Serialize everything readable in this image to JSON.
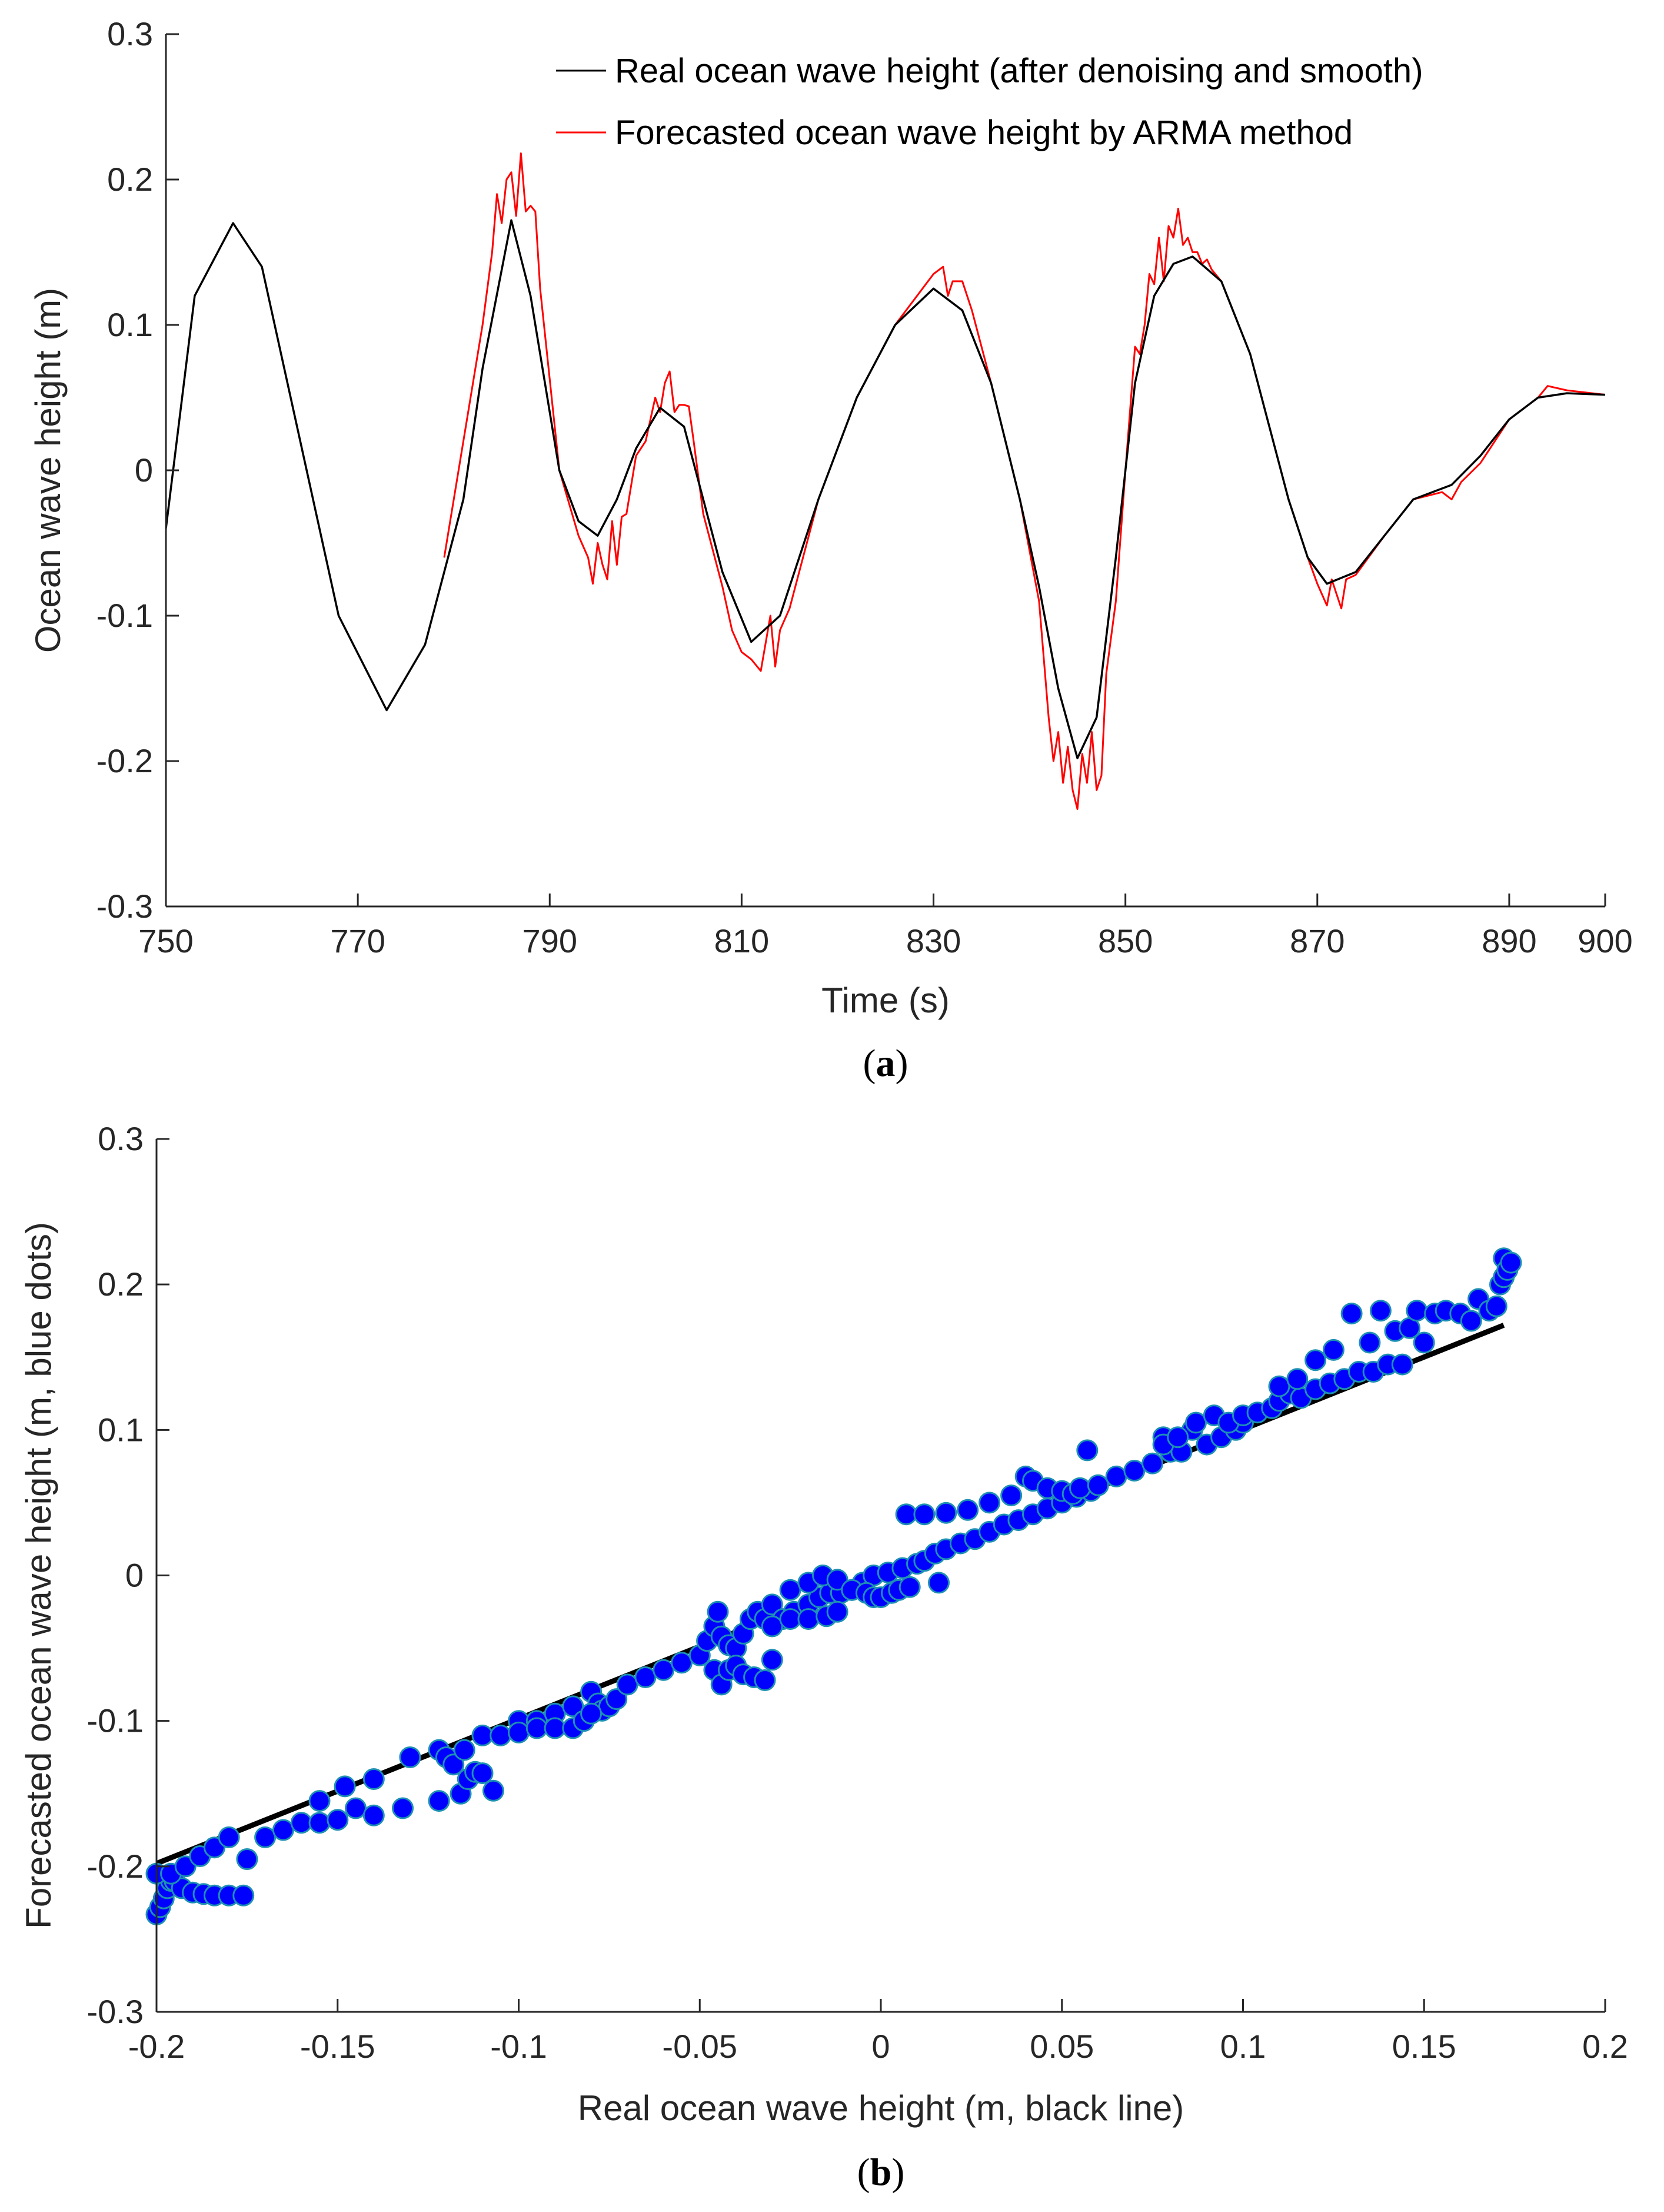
{
  "chart_data": [
    {
      "type": "line",
      "panel_label": "a",
      "xlabel": "Time (s)",
      "ylabel": "Ocean wave height (m)",
      "xlim": [
        750,
        900
      ],
      "ylim": [
        -0.3,
        0.3
      ],
      "xticks": [
        750,
        770,
        790,
        810,
        830,
        850,
        870,
        890,
        900
      ],
      "yticks": [
        -0.3,
        -0.2,
        -0.1,
        0,
        0.1,
        0.2,
        0.3
      ],
      "ytick_labels": [
        "-0.3",
        "-0.2",
        "-0.1",
        "0",
        "0.1",
        "0.2",
        "0.3"
      ],
      "legend_position": "top-right",
      "series": [
        {
          "name": "Real ocean wave height (after denoising and smooth)",
          "color": "#000000",
          "x": [
            750,
            753,
            757,
            760,
            764,
            768,
            773,
            777,
            781,
            783,
            786,
            788,
            791,
            793,
            795,
            797,
            799,
            801.5,
            804,
            806,
            808,
            811,
            814,
            818,
            822,
            826,
            830,
            833,
            836,
            839,
            841,
            843,
            845,
            847,
            849,
            851,
            853,
            855,
            857,
            860,
            863,
            865,
            867,
            869,
            871,
            874,
            877,
            880,
            884,
            887,
            890,
            893,
            896,
            900
          ],
          "y": [
            -0.04,
            0.12,
            0.17,
            0.14,
            0.02,
            -0.1,
            -0.165,
            -0.12,
            -0.02,
            0.07,
            0.172,
            0.12,
            0.0,
            -0.035,
            -0.045,
            -0.02,
            0.015,
            0.043,
            0.03,
            -0.02,
            -0.07,
            -0.118,
            -0.1,
            -0.02,
            0.05,
            0.1,
            0.125,
            0.11,
            0.06,
            -0.02,
            -0.08,
            -0.15,
            -0.198,
            -0.17,
            -0.06,
            0.06,
            0.12,
            0.142,
            0.147,
            0.13,
            0.08,
            0.03,
            -0.02,
            -0.06,
            -0.078,
            -0.07,
            -0.045,
            -0.02,
            -0.01,
            0.01,
            0.035,
            0.05,
            0.053,
            0.052
          ]
        },
        {
          "name": "Forecasted ocean wave height by ARMA method",
          "color": "#ff0000",
          "x": [
            779,
            781,
            783,
            784,
            784.5,
            785,
            785.5,
            786,
            786.5,
            787,
            787.5,
            788,
            788.5,
            789,
            791,
            793,
            794,
            794.5,
            795,
            795.5,
            796,
            796.5,
            797,
            797.5,
            798,
            799,
            800,
            801,
            801.5,
            802,
            802.5,
            803,
            803.5,
            804,
            804.5,
            805,
            806,
            808,
            809,
            810,
            811,
            812,
            813,
            813.5,
            814,
            815,
            816,
            818,
            822,
            826,
            830,
            831,
            831.5,
            832,
            833,
            834,
            836,
            839,
            841,
            842,
            842.5,
            843,
            843.5,
            844,
            844.5,
            845,
            845.5,
            846,
            846.5,
            847,
            847.5,
            848,
            849,
            850,
            851,
            851.5,
            852,
            852.5,
            853,
            853.5,
            854,
            854.5,
            855,
            855.5,
            856,
            856.5,
            857,
            857.5,
            858,
            858.5,
            859,
            860,
            863,
            865,
            867,
            869,
            870,
            871,
            871.5,
            872,
            872.5,
            873,
            874,
            877,
            880,
            883,
            884,
            885,
            887,
            890,
            893,
            894,
            896,
            900
          ],
          "y": [
            -0.06,
            0.02,
            0.1,
            0.15,
            0.19,
            0.17,
            0.2,
            0.205,
            0.175,
            0.218,
            0.178,
            0.182,
            0.178,
            0.125,
            0.0,
            -0.045,
            -0.06,
            -0.078,
            -0.05,
            -0.065,
            -0.075,
            -0.035,
            -0.065,
            -0.032,
            -0.03,
            0.01,
            0.02,
            0.05,
            0.04,
            0.06,
            0.068,
            0.04,
            0.045,
            0.045,
            0.044,
            0.02,
            -0.03,
            -0.08,
            -0.11,
            -0.125,
            -0.13,
            -0.138,
            -0.1,
            -0.135,
            -0.11,
            -0.095,
            -0.07,
            -0.02,
            0.05,
            0.1,
            0.135,
            0.14,
            0.12,
            0.13,
            0.13,
            0.11,
            0.06,
            -0.02,
            -0.09,
            -0.17,
            -0.2,
            -0.18,
            -0.215,
            -0.19,
            -0.22,
            -0.233,
            -0.195,
            -0.215,
            -0.18,
            -0.22,
            -0.21,
            -0.14,
            -0.09,
            0.0,
            0.085,
            0.08,
            0.1,
            0.135,
            0.128,
            0.16,
            0.13,
            0.168,
            0.16,
            0.18,
            0.155,
            0.16,
            0.15,
            0.15,
            0.142,
            0.145,
            0.138,
            0.13,
            0.08,
            0.03,
            -0.02,
            -0.06,
            -0.078,
            -0.093,
            -0.075,
            -0.085,
            -0.095,
            -0.075,
            -0.072,
            -0.045,
            -0.02,
            -0.015,
            -0.02,
            -0.008,
            0.005,
            0.035,
            0.05,
            0.058,
            0.055,
            0.052
          ]
        }
      ]
    },
    {
      "type": "scatter",
      "panel_label": "b",
      "xlabel": "Real ocean wave height (m, black line)",
      "ylabel": "Forecasted ocean wave height (m, blue dots)",
      "xlim": [
        -0.2,
        0.2
      ],
      "ylim": [
        -0.3,
        0.3
      ],
      "xticks": [
        -0.2,
        -0.15,
        -0.1,
        -0.05,
        0,
        0.05,
        0.1,
        0.15,
        0.2
      ],
      "xtick_labels": [
        "-0.2",
        "-0.15",
        "-0.1",
        "-0.05",
        "0",
        "0.05",
        "0.1",
        "0.15",
        "0.2"
      ],
      "yticks": [
        -0.3,
        -0.2,
        -0.1,
        0,
        0.1,
        0.2,
        0.3
      ],
      "ytick_labels": [
        "-0.3",
        "-0.2",
        "-0.1",
        "0",
        "0.1",
        "0.2",
        "0.3"
      ],
      "reference_line": {
        "x": [
          -0.2,
          0.172
        ],
        "y": [
          -0.198,
          0.172
        ],
        "color": "#000000"
      },
      "point_color": "#0000ff",
      "point_edge_color": "#1e90b4",
      "points": [
        [
          -0.2,
          -0.233
        ],
        [
          -0.199,
          -0.228
        ],
        [
          -0.198,
          -0.222
        ],
        [
          -0.197,
          -0.215
        ],
        [
          -0.196,
          -0.21
        ],
        [
          -0.195,
          -0.21
        ],
        [
          -0.193,
          -0.215
        ],
        [
          -0.19,
          -0.218
        ],
        [
          -0.187,
          -0.219
        ],
        [
          -0.184,
          -0.22
        ],
        [
          -0.18,
          -0.22
        ],
        [
          -0.176,
          -0.22
        ],
        [
          -0.2,
          -0.205
        ],
        [
          -0.196,
          -0.205
        ],
        [
          -0.192,
          -0.2
        ],
        [
          -0.188,
          -0.193
        ],
        [
          -0.184,
          -0.187
        ],
        [
          -0.18,
          -0.18
        ],
        [
          -0.175,
          -0.195
        ],
        [
          -0.17,
          -0.18
        ],
        [
          -0.165,
          -0.175
        ],
        [
          -0.16,
          -0.17
        ],
        [
          -0.155,
          -0.17
        ],
        [
          -0.15,
          -0.168
        ],
        [
          -0.145,
          -0.16
        ],
        [
          -0.14,
          -0.165
        ],
        [
          -0.132,
          -0.16
        ],
        [
          -0.122,
          -0.155
        ],
        [
          -0.116,
          -0.15
        ],
        [
          -0.114,
          -0.14
        ],
        [
          -0.112,
          -0.135
        ],
        [
          -0.11,
          -0.136
        ],
        [
          -0.107,
          -0.148
        ],
        [
          -0.155,
          -0.155
        ],
        [
          -0.148,
          -0.145
        ],
        [
          -0.14,
          -0.14
        ],
        [
          -0.13,
          -0.125
        ],
        [
          -0.122,
          -0.12
        ],
        [
          -0.12,
          -0.125
        ],
        [
          -0.118,
          -0.13
        ],
        [
          -0.115,
          -0.12
        ],
        [
          -0.11,
          -0.11
        ],
        [
          -0.105,
          -0.11
        ],
        [
          -0.1,
          -0.1
        ],
        [
          -0.095,
          -0.1
        ],
        [
          -0.09,
          -0.095
        ],
        [
          -0.085,
          -0.09
        ],
        [
          -0.08,
          -0.08
        ],
        [
          -0.078,
          -0.088
        ],
        [
          -0.077,
          -0.093
        ],
        [
          -0.075,
          -0.09
        ],
        [
          -0.073,
          -0.085
        ],
        [
          -0.07,
          -0.075
        ],
        [
          -0.065,
          -0.07
        ],
        [
          -0.06,
          -0.065
        ],
        [
          -0.055,
          -0.06
        ],
        [
          -0.05,
          -0.055
        ],
        [
          -0.1,
          -0.108
        ],
        [
          -0.095,
          -0.105
        ],
        [
          -0.09,
          -0.105
        ],
        [
          -0.085,
          -0.105
        ],
        [
          -0.082,
          -0.1
        ],
        [
          -0.08,
          -0.095
        ],
        [
          -0.048,
          -0.045
        ],
        [
          -0.046,
          -0.035
        ],
        [
          -0.045,
          -0.025
        ],
        [
          -0.044,
          -0.042
        ],
        [
          -0.042,
          -0.048
        ],
        [
          -0.04,
          -0.05
        ],
        [
          -0.038,
          -0.04
        ],
        [
          -0.036,
          -0.03
        ],
        [
          -0.034,
          -0.025
        ],
        [
          -0.032,
          -0.03
        ],
        [
          -0.046,
          -0.065
        ],
        [
          -0.044,
          -0.075
        ],
        [
          -0.042,
          -0.065
        ],
        [
          -0.04,
          -0.062
        ],
        [
          -0.038,
          -0.068
        ],
        [
          -0.035,
          -0.07
        ],
        [
          -0.032,
          -0.072
        ],
        [
          -0.03,
          -0.058
        ],
        [
          -0.03,
          -0.02
        ],
        [
          -0.027,
          -0.03
        ],
        [
          -0.024,
          -0.025
        ],
        [
          -0.02,
          -0.02
        ],
        [
          -0.017,
          -0.015
        ],
        [
          -0.014,
          -0.012
        ],
        [
          -0.011,
          -0.012
        ],
        [
          -0.008,
          -0.01
        ],
        [
          -0.005,
          -0.005
        ],
        [
          -0.002,
          0.0
        ],
        [
          0.002,
          0.002
        ],
        [
          0.006,
          0.005
        ],
        [
          0.01,
          0.008
        ],
        [
          -0.025,
          -0.01
        ],
        [
          -0.02,
          -0.005
        ],
        [
          -0.016,
          0.0
        ],
        [
          -0.012,
          -0.003
        ],
        [
          -0.008,
          -0.01
        ],
        [
          -0.004,
          -0.012
        ],
        [
          -0.002,
          -0.015
        ],
        [
          0.0,
          -0.015
        ],
        [
          0.003,
          -0.012
        ],
        [
          0.005,
          -0.01
        ],
        [
          0.008,
          -0.008
        ],
        [
          -0.03,
          -0.035
        ],
        [
          -0.025,
          -0.03
        ],
        [
          -0.02,
          -0.03
        ],
        [
          -0.015,
          -0.028
        ],
        [
          -0.012,
          -0.025
        ],
        [
          0.012,
          0.01
        ],
        [
          0.015,
          0.015
        ],
        [
          0.016,
          -0.005
        ],
        [
          0.018,
          0.018
        ],
        [
          0.022,
          0.022
        ],
        [
          0.026,
          0.025
        ],
        [
          0.03,
          0.03
        ],
        [
          0.034,
          0.035
        ],
        [
          0.038,
          0.038
        ],
        [
          0.042,
          0.042
        ],
        [
          0.046,
          0.046
        ],
        [
          0.05,
          0.05
        ],
        [
          0.054,
          0.054
        ],
        [
          0.058,
          0.058
        ],
        [
          0.007,
          0.042
        ],
        [
          0.012,
          0.042
        ],
        [
          0.018,
          0.043
        ],
        [
          0.024,
          0.045
        ],
        [
          0.03,
          0.05
        ],
        [
          0.036,
          0.055
        ],
        [
          0.04,
          0.068
        ],
        [
          0.042,
          0.065
        ],
        [
          0.046,
          0.06
        ],
        [
          0.05,
          0.058
        ],
        [
          0.053,
          0.056
        ],
        [
          0.055,
          0.06
        ],
        [
          0.057,
          0.086
        ],
        [
          0.06,
          0.062
        ],
        [
          0.065,
          0.068
        ],
        [
          0.07,
          0.072
        ],
        [
          0.075,
          0.077
        ],
        [
          0.078,
          0.095
        ],
        [
          0.08,
          0.085
        ],
        [
          0.083,
          0.085
        ],
        [
          0.086,
          0.1
        ],
        [
          0.09,
          0.09
        ],
        [
          0.094,
          0.095
        ],
        [
          0.098,
          0.1
        ],
        [
          0.1,
          0.105
        ],
        [
          0.078,
          0.09
        ],
        [
          0.082,
          0.095
        ],
        [
          0.087,
          0.105
        ],
        [
          0.092,
          0.11
        ],
        [
          0.096,
          0.105
        ],
        [
          0.1,
          0.11
        ],
        [
          0.104,
          0.112
        ],
        [
          0.108,
          0.115
        ],
        [
          0.11,
          0.12
        ],
        [
          0.113,
          0.125
        ],
        [
          0.116,
          0.122
        ],
        [
          0.12,
          0.128
        ],
        [
          0.124,
          0.132
        ],
        [
          0.128,
          0.135
        ],
        [
          0.132,
          0.14
        ],
        [
          0.136,
          0.14
        ],
        [
          0.14,
          0.145
        ],
        [
          0.144,
          0.145
        ],
        [
          0.11,
          0.13
        ],
        [
          0.115,
          0.135
        ],
        [
          0.12,
          0.148
        ],
        [
          0.125,
          0.155
        ],
        [
          0.13,
          0.18
        ],
        [
          0.135,
          0.16
        ],
        [
          0.138,
          0.182
        ],
        [
          0.142,
          0.168
        ],
        [
          0.146,
          0.17
        ],
        [
          0.148,
          0.182
        ],
        [
          0.15,
          0.16
        ],
        [
          0.153,
          0.18
        ],
        [
          0.156,
          0.182
        ],
        [
          0.16,
          0.18
        ],
        [
          0.163,
          0.175
        ],
        [
          0.165,
          0.19
        ],
        [
          0.168,
          0.182
        ],
        [
          0.17,
          0.185
        ],
        [
          0.171,
          0.2
        ],
        [
          0.172,
          0.205
        ],
        [
          0.172,
          0.218
        ],
        [
          0.173,
          0.21
        ],
        [
          0.174,
          0.215
        ]
      ]
    }
  ]
}
